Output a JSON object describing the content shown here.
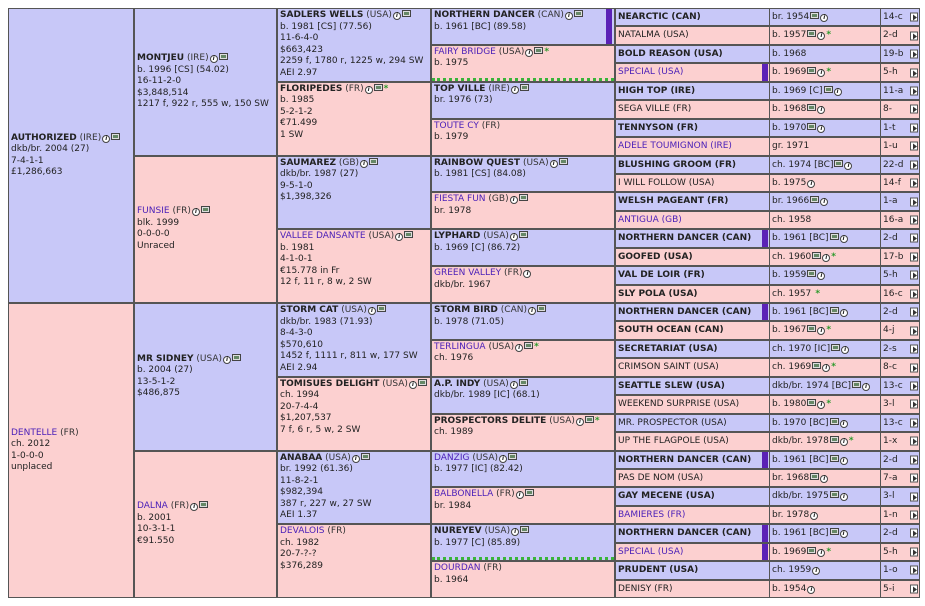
{
  "gen1": [
    {
      "name": "AUTHORIZED",
      "country": "(IRE)",
      "sex": "m",
      "lines": [
        "dkb/br. 2004 (27)",
        "7-4-1-1",
        "£1,286,663"
      ],
      "bold": true,
      "icons": true
    },
    {
      "name": "DENTELLE",
      "country": "(FR)",
      "sex": "f",
      "lines": [
        "ch. 2012",
        "1-0-0-0",
        "unplaced"
      ],
      "bold": false,
      "icons": false
    }
  ],
  "gen2": [
    {
      "name": "MONTJEU",
      "country": "(IRE)",
      "sex": "m",
      "lines": [
        "b. 1996 [CS] (54.02)",
        "16-11-2-0",
        "$3,848,514",
        "1217 f, 922 r, 555 w, 150 SW"
      ],
      "bold": true,
      "photo": true
    },
    {
      "name": "FUNSIE",
      "country": "(FR)",
      "sex": "f",
      "lines": [
        "blk. 1999",
        "0-0-0-0",
        "Unraced"
      ],
      "bold": false
    },
    {
      "name": "MR SIDNEY",
      "country": "(USA)",
      "sex": "m",
      "lines": [
        "b. 2004 (27)",
        "13-5-1-2",
        "$486,875"
      ],
      "bold": true,
      "photo": true
    },
    {
      "name": "DALNA",
      "country": "(FR)",
      "sex": "f",
      "lines": [
        "b. 2001",
        "10-3-1-1",
        "€91.550"
      ],
      "bold": false,
      "plain": true
    }
  ],
  "gen3": [
    {
      "name": "SADLERS WELLS",
      "country": "(USA)",
      "sex": "m",
      "lines": [
        "b. 1981 [CS] (77.56)",
        "11-6-4-0",
        "$663,423",
        "2259 f, 1780 r, 1225 w, 294 SW",
        "AEI 2.97"
      ],
      "bold": true,
      "photo": true
    },
    {
      "name": "FLORIPEDES",
      "country": "(FR)",
      "sex": "f",
      "lines": [
        "b. 1985",
        "5-2-1-2",
        "€71.499",
        "1 SW"
      ],
      "bold": true,
      "star": true
    },
    {
      "name": "SAUMAREZ",
      "country": "(GB)",
      "sex": "m",
      "lines": [
        "dkb/br. 1987 (27)",
        "9-5-1-0",
        "$1,398,326"
      ],
      "bold": true,
      "photo": true
    },
    {
      "name": "VALLEE DANSANTE",
      "country": "(USA)",
      "sex": "f",
      "lines": [
        "b. 1981",
        "4-1-0-1",
        "€15.778 in Fr",
        "12 f, 11 r, 8 w, 2 SW"
      ],
      "bold": false
    },
    {
      "name": "STORM CAT",
      "country": "(USA)",
      "sex": "m",
      "lines": [
        "dkb/br. 1983 (71.93)",
        "8-4-3-0",
        "$570,610",
        "1452 f, 1111 r, 811 w, 177 SW",
        "AEI 2.94"
      ],
      "bold": true,
      "photo": true
    },
    {
      "name": "TOMISUES DELIGHT",
      "country": "(USA)",
      "sex": "f",
      "lines": [
        "ch. 1994",
        "20-7-4-4",
        "$1,207,537",
        "7 f, 6 r, 5 w, 2 SW"
      ],
      "bold": true,
      "photo": true
    },
    {
      "name": "ANABAA",
      "country": "(USA)",
      "sex": "m",
      "lines": [
        "br. 1992 (61.36)",
        "11-8-2-1",
        "$982,394",
        "387 r, 227 w, 27 SW",
        "AEI 1.37"
      ],
      "bold": true,
      "photo": true
    },
    {
      "name": "DEVALOIS",
      "country": "(FR)",
      "sex": "f",
      "lines": [
        "ch. 1982",
        "20-7-?-?",
        "$376,289"
      ],
      "bold": false,
      "plain": true,
      "noicon": true
    }
  ],
  "gen4": [
    {
      "name": "NORTHERN DANCER",
      "country": "(CAN)",
      "sex": "m",
      "lines": [
        "b. 1961 [BC] (89.58)"
      ],
      "bold": true,
      "bar": true
    },
    {
      "name": "FAIRY BRIDGE",
      "country": "(USA)",
      "sex": "f",
      "lines": [
        "b. 1975"
      ],
      "bold": false,
      "star": true,
      "dash": true
    },
    {
      "name": "TOP VILLE",
      "country": "(IRE)",
      "sex": "m",
      "lines": [
        "br. 1976 (73)"
      ],
      "bold": true
    },
    {
      "name": "TOUTE CY",
      "country": "(FR)",
      "sex": "f",
      "lines": [
        "b. 1979"
      ],
      "bold": false,
      "noicon": true
    },
    {
      "name": "RAINBOW QUEST",
      "country": "(USA)",
      "sex": "m",
      "lines": [
        "b. 1981 [CS] (84.08)"
      ],
      "bold": true
    },
    {
      "name": "FIESTA FUN",
      "country": "(GB)",
      "sex": "f",
      "lines": [
        "br. 1978"
      ],
      "bold": false,
      "plain": true
    },
    {
      "name": "LYPHARD",
      "country": "(USA)",
      "sex": "m",
      "lines": [
        "b. 1969 [C] (86.72)"
      ],
      "bold": true
    },
    {
      "name": "GREEN VALLEY",
      "country": "(FR)",
      "sex": "f",
      "lines": [
        "dkb/br. 1967"
      ],
      "bold": false,
      "onlyinfo": true
    },
    {
      "name": "STORM BIRD",
      "country": "(CAN)",
      "sex": "m",
      "lines": [
        "b. 1978 (71.05)"
      ],
      "bold": true
    },
    {
      "name": "TERLINGUA",
      "country": "(USA)",
      "sex": "f",
      "lines": [
        "ch. 1976"
      ],
      "bold": false,
      "plain": true,
      "star": true
    },
    {
      "name": "A.P. INDY",
      "country": "(USA)",
      "sex": "m",
      "lines": [
        "dkb/br. 1989 [IC] (68.1)"
      ],
      "bold": true
    },
    {
      "name": "PROSPECTORS DELITE",
      "country": "(USA)",
      "sex": "f",
      "lines": [
        "ch. 1989"
      ],
      "bold": true,
      "star": true
    },
    {
      "name": "DANZIG",
      "country": "(USA)",
      "sex": "m",
      "lines": [
        "b. 1977 [IC] (82.42)"
      ],
      "bold": false,
      "mpurple": true
    },
    {
      "name": "BALBONELLA",
      "country": "(FR)",
      "sex": "f",
      "lines": [
        "br. 1984"
      ],
      "bold": false,
      "plain": true
    },
    {
      "name": "NUREYEV",
      "country": "(USA)",
      "sex": "m",
      "lines": [
        "b. 1977 [C] (85.89)"
      ],
      "bold": true,
      "dash": true
    },
    {
      "name": "DOURDAN",
      "country": "(FR)",
      "sex": "f",
      "lines": [
        "b. 1964"
      ],
      "bold": false,
      "plain": true,
      "noicon": true
    }
  ],
  "gen5": [
    {
      "name": "NEARCTIC (CAN)",
      "sex": "m",
      "info": "br. 1954",
      "stat": "14-c",
      "bold": true
    },
    {
      "name": "NATALMA (USA)",
      "sex": "f",
      "info": "b. 1957",
      "stat": "2-d",
      "bold": false,
      "star": true
    },
    {
      "name": "BOLD REASON (USA)",
      "sex": "m",
      "info": "b. 1968",
      "stat": "19-b",
      "bold": true,
      "noicon": true
    },
    {
      "name": "SPECIAL (USA)",
      "sex": "f",
      "info": "b. 1969",
      "stat": "5-h",
      "bold": false,
      "star": true,
      "purple": true,
      "bar": true
    },
    {
      "name": "HIGH TOP (IRE)",
      "sex": "m",
      "info": "b. 1969 [C]",
      "stat": "11-a",
      "bold": true
    },
    {
      "name": "SEGA VILLE (FR)",
      "sex": "f",
      "info": "b. 1968",
      "stat": "8-",
      "bold": false
    },
    {
      "name": "TENNYSON (FR)",
      "sex": "m",
      "info": "b. 1970",
      "stat": "1-t",
      "bold": true
    },
    {
      "name": "ADELE TOUMIGNON (IRE)",
      "sex": "f",
      "info": "gr. 1971",
      "stat": "1-u",
      "bold": false,
      "purple": true,
      "noicon": true
    },
    {
      "name": "BLUSHING GROOM (FR)",
      "sex": "m",
      "info": "ch. 1974 [BC]",
      "stat": "22-d",
      "bold": true
    },
    {
      "name": "I WILL FOLLOW (USA)",
      "sex": "f",
      "info": "b. 1975",
      "stat": "14-f",
      "bold": false,
      "onlyinfo": true
    },
    {
      "name": "WELSH PAGEANT (FR)",
      "sex": "m",
      "info": "br. 1966",
      "stat": "1-a",
      "bold": true
    },
    {
      "name": "ANTIGUA (GB)",
      "sex": "f",
      "info": "ch. 1958",
      "stat": "16-a",
      "bold": false,
      "purple": true,
      "noicon": true
    },
    {
      "name": "NORTHERN DANCER (CAN)",
      "sex": "m",
      "info": "b. 1961 [BC]",
      "stat": "2-d",
      "bold": true,
      "bar": true
    },
    {
      "name": "GOOFED (USA)",
      "sex": "f",
      "info": "ch. 1960",
      "stat": "17-b",
      "bold": true,
      "star": true
    },
    {
      "name": "VAL DE LOIR (FR)",
      "sex": "m",
      "info": "b. 1959",
      "stat": "5-h",
      "bold": true
    },
    {
      "name": "SLY POLA (USA)",
      "sex": "f",
      "info": "ch. 1957",
      "stat": "16-c",
      "bold": true,
      "staronly": true
    },
    {
      "name": "NORTHERN DANCER (CAN)",
      "sex": "m",
      "info": "b. 1961 [BC]",
      "stat": "2-d",
      "bold": true,
      "bar": true
    },
    {
      "name": "SOUTH OCEAN (CAN)",
      "sex": "f",
      "info": "b. 1967",
      "stat": "4-j",
      "bold": true,
      "star": true
    },
    {
      "name": "SECRETARIAT (USA)",
      "sex": "m",
      "info": "ch. 1970 [IC]",
      "stat": "2-s",
      "bold": true
    },
    {
      "name": "CRIMSON SAINT (USA)",
      "sex": "f",
      "info": "ch. 1969",
      "stat": "8-c",
      "bold": false,
      "star": true
    },
    {
      "name": "SEATTLE SLEW (USA)",
      "sex": "m",
      "info": "dkb/br. 1974 [BC]",
      "stat": "13-c",
      "bold": true
    },
    {
      "name": "WEEKEND SURPRISE (USA)",
      "sex": "f",
      "info": "b. 1980",
      "stat": "3-l",
      "bold": false,
      "star": true
    },
    {
      "name": "MR. PROSPECTOR (USA)",
      "sex": "m",
      "info": "b. 1970 [BC]",
      "stat": "13-c",
      "bold": false
    },
    {
      "name": "UP THE FLAGPOLE (USA)",
      "sex": "f",
      "info": "dkb/br. 1978",
      "stat": "1-x",
      "bold": false,
      "star": true
    },
    {
      "name": "NORTHERN DANCER (CAN)",
      "sex": "m",
      "info": "b. 1961 [BC]",
      "stat": "2-d",
      "bold": true,
      "bar": true
    },
    {
      "name": "PAS DE NOM (USA)",
      "sex": "f",
      "info": "br. 1968",
      "stat": "7-a",
      "bold": false
    },
    {
      "name": "GAY MECENE (USA)",
      "sex": "m",
      "info": "dkb/br. 1975",
      "stat": "3-l",
      "bold": true
    },
    {
      "name": "BAMIERES (FR)",
      "sex": "f",
      "info": "br. 1978",
      "stat": "1-n",
      "bold": false,
      "purple": true,
      "onlyinfo": true
    },
    {
      "name": "NORTHERN DANCER (CAN)",
      "sex": "m",
      "info": "b. 1961 [BC]",
      "stat": "2-d",
      "bold": true,
      "bar": true
    },
    {
      "name": "SPECIAL (USA)",
      "sex": "f",
      "info": "b. 1969",
      "stat": "5-h",
      "bold": false,
      "star": true,
      "purple": true,
      "bar": true
    },
    {
      "name": "PRUDENT (USA)",
      "sex": "m",
      "info": "ch. 1959",
      "stat": "1-o",
      "bold": true,
      "onlyinfo": true
    },
    {
      "name": "DENISY (FR)",
      "sex": "f",
      "info": "b. 1954",
      "stat": "5-i",
      "bold": false,
      "onlyinfo": true
    }
  ]
}
